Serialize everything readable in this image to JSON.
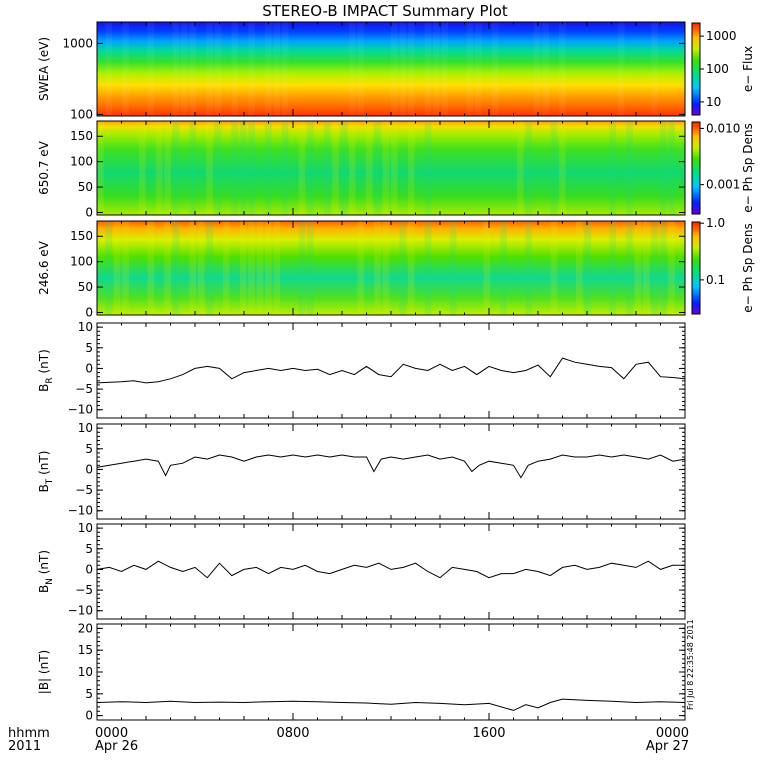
{
  "title": "STEREO-B IMPACT Summary Plot",
  "timestamp": "Fri Jul 8 22:35:48 2011",
  "time_axis": {
    "row1": [
      "0000",
      "0800",
      "1600",
      "0000"
    ],
    "row2": [
      "Apr 26",
      "",
      "",
      "Apr 27"
    ],
    "left_label_1": "hhmm",
    "left_label_2": "2011",
    "range_hours": [
      0,
      24
    ],
    "major_ticks_hours": [
      0,
      8,
      16,
      24
    ]
  },
  "chart_data": [
    {
      "type": "heatmap",
      "id": "swea",
      "ylabel": "SWEA (eV)",
      "yscale": "log",
      "ylim": [
        95,
        2000
      ],
      "ytick_labels": [
        "100",
        "1000"
      ],
      "ytick_values": [
        100,
        1000
      ],
      "colorbar": {
        "label": "e− Flux",
        "scale": "log",
        "range": [
          4,
          2500
        ],
        "tick_labels": [
          "10",
          "100",
          "1000"
        ],
        "tick_values": [
          10,
          100,
          1000
        ]
      },
      "rows_energy_eV": [
        120,
        160,
        210,
        280,
        380,
        520,
        700,
        950,
        1300,
        1750
      ],
      "row_flux": [
        2200,
        1500,
        700,
        280,
        120,
        60,
        30,
        15,
        6,
        3
      ]
    },
    {
      "type": "heatmap",
      "id": "pad650",
      "ylabel": "650.7 eV",
      "ylim": [
        -5,
        180
      ],
      "ytick_labels": [
        "0",
        "50",
        "100",
        "150"
      ],
      "ytick_values": [
        0,
        50,
        100,
        150
      ],
      "colorbar": {
        "label": "e− Ph Sp Dens",
        "scale": "log",
        "range": [
          0.0003,
          0.013
        ],
        "tick_labels": [
          "0.001",
          "0.010"
        ],
        "tick_values": [
          0.001,
          0.01
        ]
      }
    },
    {
      "type": "heatmap",
      "id": "pad246",
      "ylabel": "246.6 eV",
      "ylim": [
        -5,
        180
      ],
      "ytick_labels": [
        "0",
        "50",
        "100",
        "150"
      ],
      "ytick_values": [
        0,
        50,
        100,
        150
      ],
      "colorbar": {
        "label": "e− Ph Sp Dens",
        "scale": "log",
        "range": [
          0.025,
          1.05
        ],
        "tick_labels": [
          "0.1",
          "1.0"
        ],
        "tick_values": [
          0.1,
          1.0
        ]
      }
    },
    {
      "type": "line",
      "id": "br",
      "ylabel_main": "B",
      "ylabel_sub": "R",
      "ylabel_unit": " (nT)",
      "ylim": [
        -12,
        11
      ],
      "ytick_labels": [
        "−10",
        "−5",
        "0",
        "5",
        "10"
      ],
      "ytick_values": [
        -10,
        -5,
        0,
        5,
        10
      ],
      "x": [
        0,
        1,
        1.5,
        2,
        2.5,
        3,
        3.5,
        4,
        4.5,
        5,
        5.5,
        6,
        6.5,
        7,
        7.5,
        8,
        8.5,
        9,
        9.5,
        10,
        10.5,
        11,
        11.5,
        12,
        12.5,
        13,
        13.5,
        14,
        14.5,
        15,
        15.5,
        16,
        16.5,
        17,
        17.5,
        18,
        18.5,
        19,
        19.5,
        20,
        20.5,
        21,
        21.5,
        22,
        22.5,
        23,
        23.5,
        24
      ],
      "y": [
        -3.5,
        -3.2,
        -3.0,
        -3.5,
        -3.2,
        -2.5,
        -1.5,
        0,
        0.5,
        0,
        -2.5,
        -1.0,
        -0.5,
        0,
        -0.5,
        0,
        -0.5,
        -0.2,
        -1.5,
        -0.5,
        -1.5,
        0.5,
        -1.5,
        -2.0,
        1.0,
        0,
        -0.5,
        1.0,
        -0.5,
        0.5,
        -1.5,
        0.5,
        -0.5,
        -1.0,
        -0.5,
        0.8,
        -2.0,
        2.5,
        1.5,
        1.0,
        0.5,
        0.2,
        -2.5,
        1.0,
        1.5,
        -2.0,
        -2.2,
        -2.5
      ]
    },
    {
      "type": "line",
      "id": "bt",
      "ylabel_main": "B",
      "ylabel_sub": "T",
      "ylabel_unit": " (nT)",
      "ylim": [
        -12,
        11
      ],
      "ytick_labels": [
        "−10",
        "−5",
        "0",
        "5",
        "10"
      ],
      "ytick_values": [
        -10,
        -5,
        0,
        5,
        10
      ],
      "x": [
        0,
        0.5,
        1,
        1.5,
        2,
        2.5,
        2.8,
        3,
        3.5,
        4,
        4.5,
        5,
        5.5,
        6,
        6.5,
        7,
        7.5,
        8,
        8.5,
        9,
        9.5,
        10,
        10.5,
        11,
        11.3,
        11.6,
        12,
        12.5,
        13,
        13.5,
        14,
        14.5,
        15,
        15.3,
        15.6,
        16,
        16.5,
        17,
        17.3,
        17.6,
        18,
        18.5,
        19,
        19.5,
        20,
        20.5,
        21,
        21.5,
        22,
        22.5,
        23,
        23.5,
        24
      ],
      "y": [
        0.5,
        1.0,
        1.5,
        2.0,
        2.5,
        2.0,
        -1.5,
        1.0,
        1.5,
        3.0,
        2.5,
        3.5,
        3.0,
        2.0,
        3.0,
        3.5,
        3.0,
        3.5,
        3.0,
        3.5,
        3.0,
        3.5,
        3.0,
        3.0,
        -0.5,
        2.5,
        3.0,
        2.5,
        3.0,
        3.5,
        2.5,
        3.0,
        2.0,
        -0.5,
        1.0,
        2.0,
        1.5,
        1.0,
        -2.0,
        1.0,
        2.0,
        2.5,
        3.5,
        3.0,
        3.0,
        3.5,
        3.0,
        3.5,
        3.0,
        2.5,
        3.5,
        2.0,
        2.5
      ]
    },
    {
      "type": "line",
      "id": "bn",
      "ylabel_main": "B",
      "ylabel_sub": "N",
      "ylabel_unit": " (nT)",
      "ylim": [
        -12,
        11
      ],
      "ytick_labels": [
        "−10",
        "−5",
        "0",
        "5",
        "10"
      ],
      "ytick_values": [
        -10,
        -5,
        0,
        5,
        10
      ],
      "x": [
        0,
        0.5,
        1,
        1.5,
        2,
        2.5,
        3,
        3.5,
        4,
        4.5,
        5,
        5.5,
        6,
        6.5,
        7,
        7.5,
        8,
        8.5,
        9,
        9.5,
        10,
        10.5,
        11,
        11.5,
        12,
        12.5,
        13,
        13.5,
        14,
        14.5,
        15,
        15.5,
        16,
        16.5,
        17,
        17.5,
        18,
        18.5,
        19,
        19.5,
        20,
        20.5,
        21,
        21.5,
        22,
        22.5,
        23,
        23.5,
        24
      ],
      "y": [
        0,
        0.5,
        -0.5,
        1.0,
        0,
        2.0,
        0.5,
        -0.5,
        0.5,
        -2.0,
        1.5,
        -1.5,
        0,
        0.5,
        -1.0,
        0.5,
        0,
        1.0,
        -0.5,
        -1.0,
        0,
        1.0,
        0.5,
        1.5,
        0,
        0.5,
        1.5,
        -0.5,
        -2.0,
        0.5,
        0,
        -0.5,
        -2.0,
        -1.0,
        -1.0,
        0,
        -0.5,
        -1.5,
        0.5,
        1.0,
        0,
        0.5,
        1.5,
        1.0,
        0.5,
        2.0,
        0,
        1.0,
        1.0
      ]
    },
    {
      "type": "line",
      "id": "bmag",
      "ylabel_main": "|B| (nT)",
      "ylim": [
        -1,
        21
      ],
      "ytick_labels": [
        "0",
        "5",
        "10",
        "15",
        "20"
      ],
      "ytick_values": [
        0,
        5,
        10,
        15,
        20
      ],
      "x": [
        0,
        1,
        2,
        3,
        4,
        5,
        6,
        7,
        8,
        9,
        10,
        11,
        12,
        13,
        14,
        15,
        16,
        17,
        17.5,
        18,
        18.5,
        19,
        20,
        21,
        22,
        23,
        24
      ],
      "y": [
        3.0,
        3.2,
        3.0,
        3.3,
        3.0,
        3.1,
        3.0,
        3.2,
        3.3,
        3.2,
        3.0,
        2.9,
        2.6,
        3.0,
        2.8,
        2.5,
        2.8,
        1.2,
        2.5,
        1.8,
        3.0,
        3.8,
        3.5,
        3.3,
        3.0,
        3.2,
        3.0
      ]
    }
  ]
}
